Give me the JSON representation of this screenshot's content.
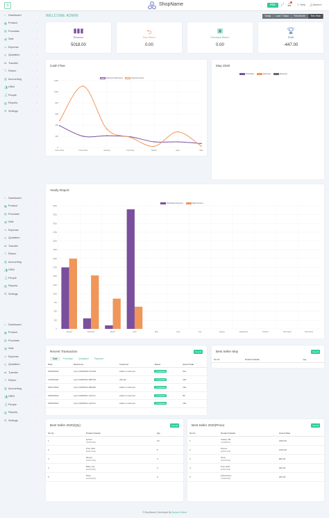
{
  "header": {
    "app_name": "ShopName",
    "pos_label": "POS",
    "help_label": "Help",
    "user_label": "Admin"
  },
  "sidebar": {
    "items": [
      "Dashboard",
      "Product",
      "Purchase",
      "Sale",
      "Expense",
      "Quotation",
      "Transfer",
      "Return",
      "Accounting",
      "HRM",
      "People",
      "Reports",
      "Settings"
    ]
  },
  "welcome": "WELCOME ADMIN",
  "filters": [
    "Today",
    "Last 7 Days",
    "This Month",
    "This Year"
  ],
  "stats": [
    {
      "label": "Revenue",
      "value": "5018.00",
      "color": "#7a4f9e",
      "icon": "chart-bar-icon"
    },
    {
      "label": "Sale Return",
      "value": "0.00",
      "color": "#f0965a",
      "icon": "return-icon"
    },
    {
      "label": "Purchase Return",
      "value": "0.00",
      "color": "#4cb39a",
      "icon": "box-icon"
    },
    {
      "label": "Profit",
      "value": "-447.00",
      "color": "#3c6fb4",
      "icon": "trophy-icon"
    }
  ],
  "cashflow": {
    "title": "Cash Flow",
    "legend": [
      "Payment Received",
      "Payment Sent"
    ]
  },
  "month_card": {
    "title": "May 2020",
    "legend": [
      "Purchase",
      "Revenue",
      "Expense"
    ]
  },
  "yearly": {
    "title": "Yearly Report",
    "legend": [
      "Purchased Amount",
      "Sold Amount"
    ]
  },
  "chart_data": [
    {
      "type": "line",
      "title": "Cash Flow",
      "categories": [
        "December",
        "November",
        "January",
        "February",
        "March",
        "April",
        "May"
      ],
      "ylim": [
        0,
        1200
      ],
      "yticks": [
        0,
        200,
        400,
        600,
        800,
        1000,
        1200
      ],
      "series": [
        {
          "name": "Payment Received",
          "color": "#7a4f9e",
          "values": [
            390,
            200,
            210,
            190,
            100,
            100,
            70
          ]
        },
        {
          "name": "Payment Sent",
          "color": "#f0965a",
          "values": [
            480,
            1100,
            330,
            180,
            20,
            280,
            20
          ]
        }
      ]
    },
    {
      "type": "bar",
      "title": "Yearly Report",
      "categories": [
        "January",
        "February",
        "March",
        "April",
        "May",
        "June",
        "July",
        "August",
        "September",
        "October",
        "November",
        "December"
      ],
      "ylim": [
        0,
        3500
      ],
      "yticks": [
        0,
        250,
        500,
        750,
        1000,
        1250,
        1500,
        1750,
        2000,
        2250,
        2500,
        2750,
        3000,
        3250,
        3500
      ],
      "series": [
        {
          "name": "Purchased Amount",
          "color": "#7a4f9e",
          "values": [
            1750,
            300,
            100,
            3400,
            0,
            0,
            0,
            0,
            0,
            0,
            0,
            0
          ]
        },
        {
          "name": "Sold Amount",
          "color": "#f0965a",
          "values": [
            2000,
            1520,
            860,
            630,
            0,
            0,
            0,
            0,
            0,
            0,
            0,
            0
          ]
        }
      ]
    }
  ],
  "recent": {
    "title": "Recent Transaction",
    "see_all": "See All",
    "tabs": [
      "Sale",
      "Purchase",
      "Quotation",
      "Payment"
    ],
    "headers": [
      "Date",
      "Reference",
      "Customer",
      "Status",
      "Grand Total"
    ],
    "rows": [
      [
        "06/09/2020",
        "posr-20200408-074324",
        "walk-in customer",
        "Completed",
        "544"
      ],
      [
        "11/05/2020",
        "posr-20200511-085749",
        "dhiman",
        "Completed",
        "100"
      ],
      [
        "05/07/2020",
        "posr-20200511-089464",
        "walk-in customer",
        "Completed",
        "162"
      ],
      [
        "05/05/2020",
        "posr-20200511-112741",
        "walk-in customer",
        "Completed",
        "85"
      ],
      [
        "05/05/2020",
        "posr-20200511-112741",
        "walk-in customer",
        "Completed",
        "100"
      ]
    ]
  },
  "best_month": {
    "title": "Best Seller May",
    "see_all": "See All",
    "headers": [
      "SL No",
      "Product Details",
      "Qty"
    ]
  },
  "best_qty": {
    "title": "Best Seller 2020(Qty)",
    "see_all": "See All",
    "headers": [
      "SL No",
      "Product Details",
      "Qty"
    ],
    "rows": [
      [
        "1",
        "lychee",
        "[76953195]",
        "20"
      ],
      [
        "2",
        "Polo Shirt",
        "[03467163]",
        "5"
      ],
      [
        "3",
        "Mouse",
        "[03467163]",
        "3"
      ],
      [
        "4",
        "Baby mie",
        "[22262320]",
        "2"
      ],
      [
        "5",
        "Shoe",
        "[24032323]",
        "2"
      ]
    ]
  },
  "best_price": {
    "title": "Best Seller 2020(Price)",
    "see_all": "See All",
    "headers": [
      "SL No",
      "Product Details",
      "Grand Total"
    ],
    "rows": [
      [
        "1",
        "Galaxy S8",
        "[72080281]",
        "2200.00"
      ],
      [
        "2",
        "Mouse",
        "[03467163]",
        "1200.00"
      ],
      [
        "3",
        "Shoe",
        "[24032323]",
        "800.00"
      ],
      [
        "4",
        "Polo Shirt",
        "[03467163]",
        "400.00"
      ],
      [
        "5",
        "Facehouse",
        "[76963195]",
        "200.00"
      ]
    ]
  },
  "footer": {
    "text": "© ShopName | Developed By",
    "link": "Nuexon Global"
  }
}
